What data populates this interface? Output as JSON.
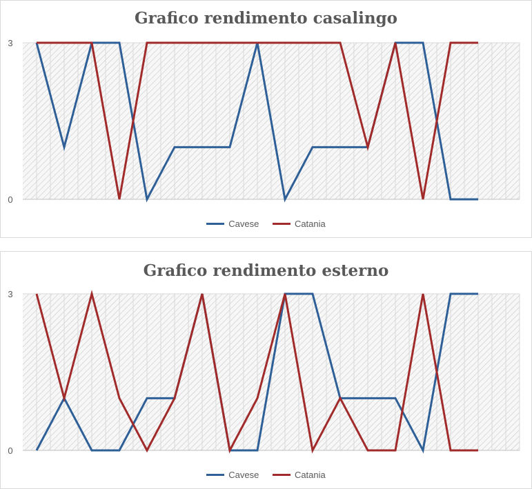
{
  "chart_data": [
    {
      "type": "line",
      "title": "Grafico rendimento casalingo",
      "xlabel": "",
      "ylabel": "",
      "ylim": [
        0,
        3
      ],
      "yticks": [
        "0",
        "3"
      ],
      "grid": true,
      "legend_position": "bottom",
      "x": [
        1,
        2,
        3,
        4,
        5,
        6,
        7,
        8,
        9,
        10,
        11,
        12,
        13,
        14,
        15,
        16,
        17,
        18
      ],
      "series": [
        {
          "name": "Cavese",
          "color": "#2e5f97",
          "values": [
            3,
            1,
            3,
            3,
            0,
            1,
            1,
            1,
            3,
            0,
            1,
            1,
            1,
            3,
            3,
            0,
            0,
            null
          ]
        },
        {
          "name": "Catania",
          "color": "#a12a2a",
          "values": [
            3,
            3,
            3,
            0,
            3,
            3,
            3,
            3,
            3,
            3,
            3,
            3,
            1,
            3,
            0,
            3,
            3,
            null
          ]
        }
      ]
    },
    {
      "type": "line",
      "title": "Grafico rendimento esterno",
      "xlabel": "",
      "ylabel": "",
      "ylim": [
        0,
        3
      ],
      "yticks": [
        "0",
        "3"
      ],
      "grid": true,
      "legend_position": "bottom",
      "x": [
        1,
        2,
        3,
        4,
        5,
        6,
        7,
        8,
        9,
        10,
        11,
        12,
        13,
        14,
        15,
        16,
        17,
        18
      ],
      "series": [
        {
          "name": "Cavese",
          "color": "#2e5f97",
          "values": [
            0,
            1,
            0,
            0,
            1,
            1,
            3,
            0,
            0,
            3,
            3,
            1,
            1,
            1,
            0,
            3,
            3,
            null
          ]
        },
        {
          "name": "Catania",
          "color": "#a12a2a",
          "values": [
            3,
            1,
            3,
            1,
            0,
            1,
            3,
            0,
            1,
            3,
            0,
            1,
            0,
            0,
            3,
            0,
            0,
            null
          ]
        }
      ]
    }
  ]
}
